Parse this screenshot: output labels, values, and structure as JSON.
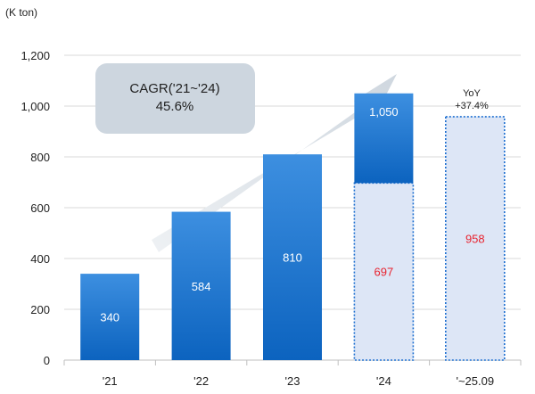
{
  "chart_data": {
    "type": "bar",
    "unit_label": "(K ton)",
    "ylim": [
      0,
      1200
    ],
    "yticks": [
      "0",
      "200",
      "400",
      "600",
      "800",
      "1,000",
      "1,200"
    ],
    "ytick_values": [
      0,
      200,
      400,
      600,
      800,
      1000,
      1200
    ],
    "categories": [
      "'21",
      "'22",
      "'23",
      "'24",
      "'~25.09"
    ],
    "solid_bars": [
      {
        "category": "'21",
        "value": 340,
        "label": "340"
      },
      {
        "category": "'22",
        "value": 584,
        "label": "584"
      },
      {
        "category": "'23",
        "value": 810,
        "label": "810"
      },
      {
        "category": "'24",
        "value": 1050,
        "label": "1,050"
      }
    ],
    "dotted_bars": [
      {
        "category": "'24",
        "value": 697,
        "label": "697"
      },
      {
        "category": "'~25.09",
        "value": 958,
        "label": "958"
      }
    ],
    "cagr": {
      "line1": "CAGR('21~'24)",
      "line2": "45.6%"
    },
    "yoy": {
      "line1": "YoY",
      "line2": "+37.4%"
    },
    "colors": {
      "bar_top": "#3d8fe0",
      "bar_bottom": "#0c63bf",
      "dotted_fill": "#dde6f6",
      "dotted_border": "#1d6fd0",
      "highlight_text": "#e8232f",
      "bar_text": "#ffffff",
      "arrow": "#d7dee6",
      "cagr_box": "#cdd6df"
    }
  }
}
